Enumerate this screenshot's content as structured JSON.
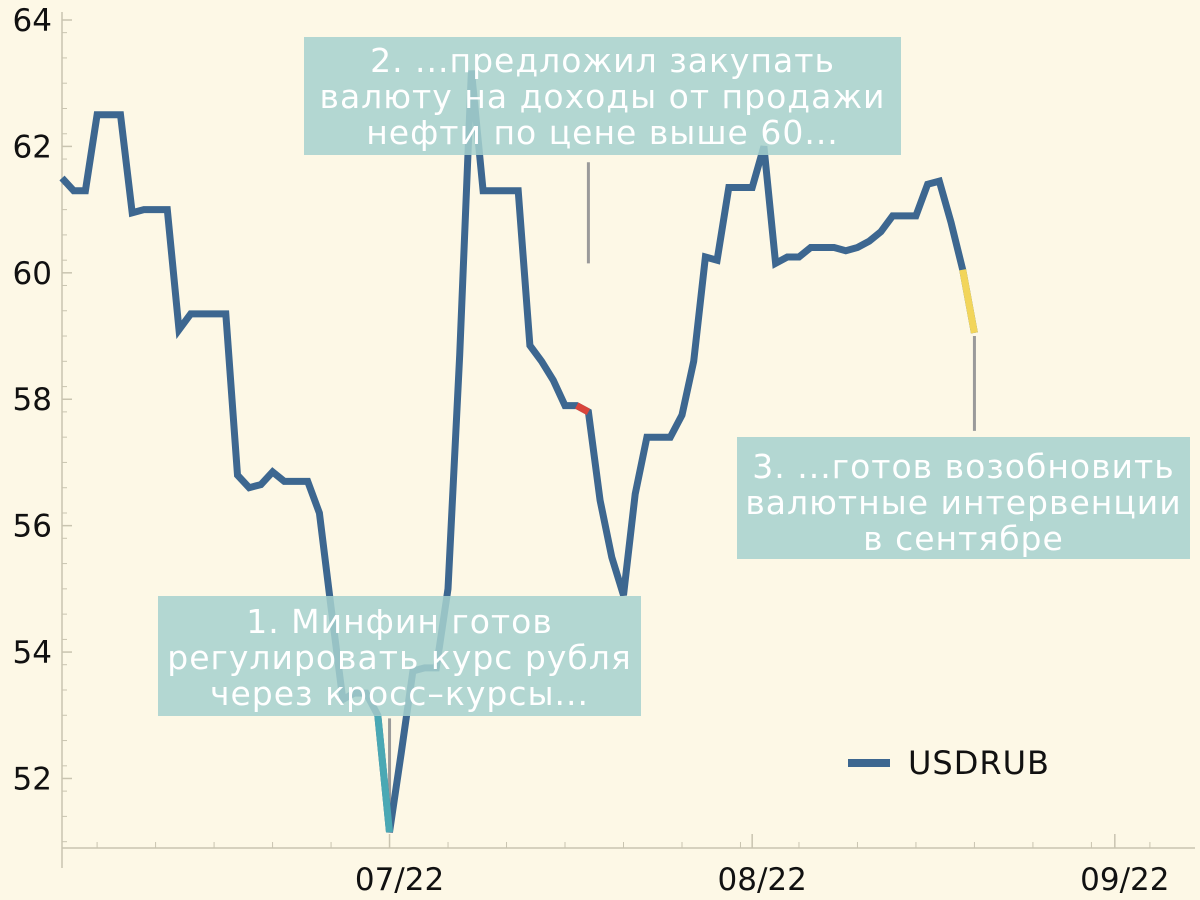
{
  "chart_data": {
    "type": "line",
    "title": "",
    "xlabel": "",
    "ylabel": "",
    "ylim": [
      50.9,
      64
    ],
    "yticks": [
      52,
      54,
      56,
      58,
      60,
      62,
      64
    ],
    "xticks": [
      {
        "label": "07/22",
        "x": "2022-07-01"
      },
      {
        "label": "08/22",
        "x": "2022-08-01"
      },
      {
        "label": "09/22",
        "x": "2022-09-01"
      }
    ],
    "xlim": [
      "2022-06-03",
      "2022-09-07"
    ],
    "legend": {
      "position": "bottom-right",
      "entries": [
        "USDRUB"
      ]
    },
    "grid": false,
    "series": [
      {
        "name": "USDRUB",
        "color": "#3d6790",
        "points": [
          {
            "x": "2022-06-03",
            "y": 61.5
          },
          {
            "x": "2022-06-04",
            "y": 61.3
          },
          {
            "x": "2022-06-05",
            "y": 61.3
          },
          {
            "x": "2022-06-06",
            "y": 62.5
          },
          {
            "x": "2022-06-07",
            "y": 62.5
          },
          {
            "x": "2022-06-08",
            "y": 62.5
          },
          {
            "x": "2022-06-09",
            "y": 60.95
          },
          {
            "x": "2022-06-10",
            "y": 61.0
          },
          {
            "x": "2022-06-11",
            "y": 61.0
          },
          {
            "x": "2022-06-12",
            "y": 61.0
          },
          {
            "x": "2022-06-13",
            "y": 59.1
          },
          {
            "x": "2022-06-14",
            "y": 59.35
          },
          {
            "x": "2022-06-15",
            "y": 59.35
          },
          {
            "x": "2022-06-16",
            "y": 59.35
          },
          {
            "x": "2022-06-17",
            "y": 59.35
          },
          {
            "x": "2022-06-18",
            "y": 56.8
          },
          {
            "x": "2022-06-19",
            "y": 56.6
          },
          {
            "x": "2022-06-20",
            "y": 56.65
          },
          {
            "x": "2022-06-21",
            "y": 56.85
          },
          {
            "x": "2022-06-22",
            "y": 56.7
          },
          {
            "x": "2022-06-23",
            "y": 56.7
          },
          {
            "x": "2022-06-24",
            "y": 56.7
          },
          {
            "x": "2022-06-25",
            "y": 56.2
          },
          {
            "x": "2022-06-26",
            "y": 54.7
          },
          {
            "x": "2022-06-27",
            "y": 53.25
          },
          {
            "x": "2022-06-28",
            "y": 53.35
          },
          {
            "x": "2022-06-29",
            "y": 53.35
          },
          {
            "x": "2022-06-30",
            "y": 53.0
          },
          {
            "x": "2022-07-01",
            "y": 51.15
          },
          {
            "x": "2022-07-02",
            "y": 52.4
          },
          {
            "x": "2022-07-03",
            "y": 53.7
          },
          {
            "x": "2022-07-04",
            "y": 53.75
          },
          {
            "x": "2022-07-05",
            "y": 53.75
          },
          {
            "x": "2022-07-06",
            "y": 55.0
          },
          {
            "x": "2022-07-07",
            "y": 58.7
          },
          {
            "x": "2022-07-08",
            "y": 63.2
          },
          {
            "x": "2022-07-09",
            "y": 61.3
          },
          {
            "x": "2022-07-10",
            "y": 61.3
          },
          {
            "x": "2022-07-11",
            "y": 61.3
          },
          {
            "x": "2022-07-12",
            "y": 61.3
          },
          {
            "x": "2022-07-13",
            "y": 58.85
          },
          {
            "x": "2022-07-14",
            "y": 58.6
          },
          {
            "x": "2022-07-15",
            "y": 58.3
          },
          {
            "x": "2022-07-16",
            "y": 57.9
          },
          {
            "x": "2022-07-17",
            "y": 57.9
          },
          {
            "x": "2022-07-18",
            "y": 57.8
          },
          {
            "x": "2022-07-19",
            "y": 56.4
          },
          {
            "x": "2022-07-20",
            "y": 55.5
          },
          {
            "x": "2022-07-21",
            "y": 54.9
          },
          {
            "x": "2022-07-22",
            "y": 56.5
          },
          {
            "x": "2022-07-23",
            "y": 57.4
          },
          {
            "x": "2022-07-24",
            "y": 57.4
          },
          {
            "x": "2022-07-25",
            "y": 57.4
          },
          {
            "x": "2022-07-26",
            "y": 57.75
          },
          {
            "x": "2022-07-27",
            "y": 58.6
          },
          {
            "x": "2022-07-28",
            "y": 60.25
          },
          {
            "x": "2022-07-29",
            "y": 60.2
          },
          {
            "x": "2022-07-30",
            "y": 61.35
          },
          {
            "x": "2022-07-31",
            "y": 61.35
          },
          {
            "x": "2022-08-01",
            "y": 61.35
          },
          {
            "x": "2022-08-02",
            "y": 62.0
          },
          {
            "x": "2022-08-03",
            "y": 60.15
          },
          {
            "x": "2022-08-04",
            "y": 60.25
          },
          {
            "x": "2022-08-05",
            "y": 60.25
          },
          {
            "x": "2022-08-06",
            "y": 60.4
          },
          {
            "x": "2022-08-07",
            "y": 60.4
          },
          {
            "x": "2022-08-08",
            "y": 60.4
          },
          {
            "x": "2022-08-09",
            "y": 60.35
          },
          {
            "x": "2022-08-10",
            "y": 60.4
          },
          {
            "x": "2022-08-11",
            "y": 60.5
          },
          {
            "x": "2022-08-12",
            "y": 60.65
          },
          {
            "x": "2022-08-13",
            "y": 60.9
          },
          {
            "x": "2022-08-14",
            "y": 60.9
          },
          {
            "x": "2022-08-15",
            "y": 60.9
          },
          {
            "x": "2022-08-16",
            "y": 61.4
          },
          {
            "x": "2022-08-17",
            "y": 61.45
          },
          {
            "x": "2022-08-18",
            "y": 60.8
          },
          {
            "x": "2022-08-19",
            "y": 60.05
          },
          {
            "x": "2022-08-20",
            "y": 59.05
          }
        ]
      }
    ],
    "highlights": [
      {
        "from": "2022-06-30",
        "to": "2022-07-01",
        "color": "#4aa8b4"
      },
      {
        "from": "2022-07-17",
        "to": "2022-07-18",
        "color": "#d9453b"
      },
      {
        "from": "2022-08-19",
        "to": "2022-08-20",
        "color": "#f2d55a"
      }
    ],
    "annotations": [
      {
        "id": "ann-1",
        "lines": [
          "1. Минфин готов",
          "регулировать курс рубля",
          "через кросс–курсы..."
        ],
        "leader_x": "2022-07-01",
        "leader_y": [
          52.95,
          51.35
        ]
      },
      {
        "id": "ann-2",
        "lines": [
          "2. ...предложил закупать",
          "валюту на доходы от продажи",
          "нефти по цене выше 60..."
        ],
        "leader_x": "2022-07-18",
        "leader_y": [
          61.75,
          60.15
        ]
      },
      {
        "id": "ann-3",
        "lines": [
          "3. ...готов возобновить",
          "валютные интервенции",
          "в сентябре"
        ],
        "leader_x": "2022-08-20",
        "leader_y": [
          59.0,
          57.5
        ]
      }
    ]
  }
}
